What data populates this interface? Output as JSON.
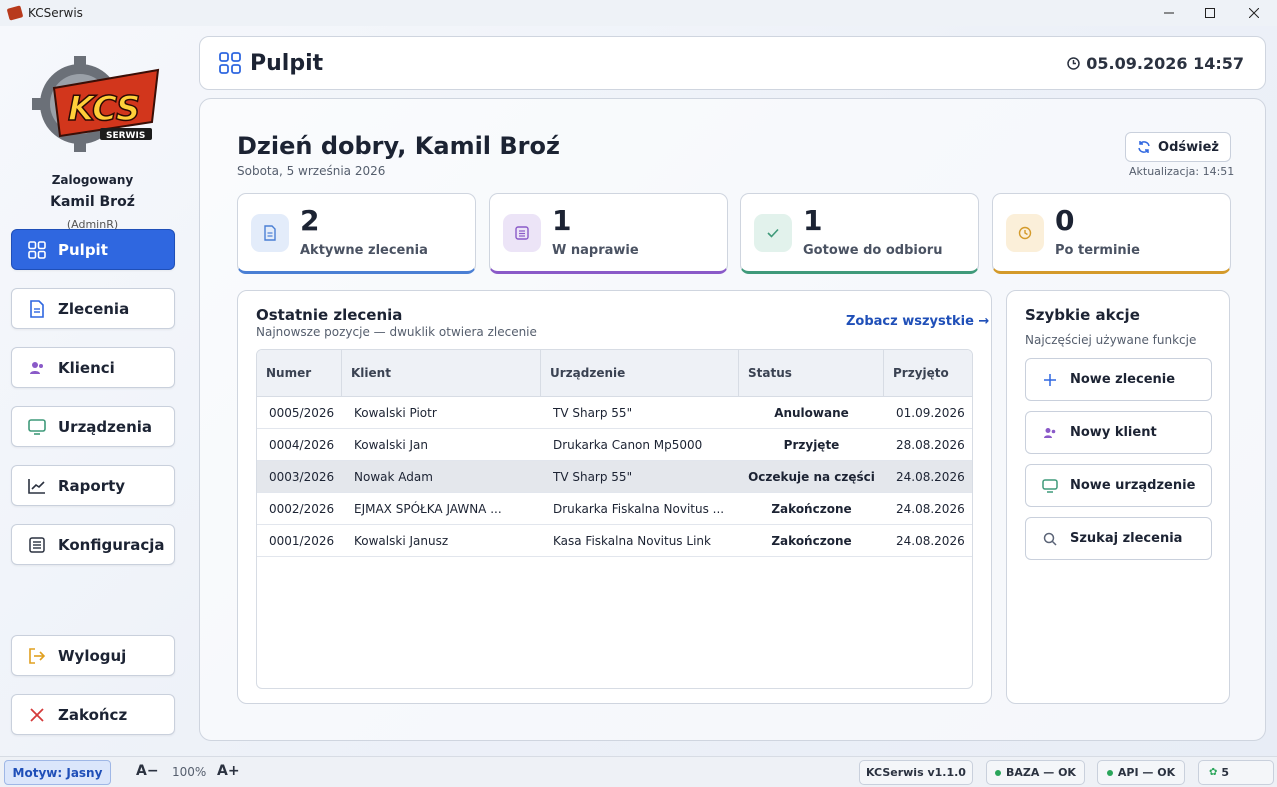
{
  "window": {
    "title": "KCSerwis"
  },
  "user": {
    "logged_label": "Zalogowany",
    "name": "Kamil Broź",
    "role": "(AdminR)"
  },
  "logo": {
    "text": "KCS",
    "subtext": "SERWIS"
  },
  "nav": {
    "items": [
      {
        "label": "Pulpit",
        "icon": "grid-icon",
        "active": true
      },
      {
        "label": "Zlecenia",
        "icon": "document-icon"
      },
      {
        "label": "Klienci",
        "icon": "users-icon"
      },
      {
        "label": "Urządzenia",
        "icon": "monitor-icon"
      },
      {
        "label": "Raporty",
        "icon": "chart-icon"
      },
      {
        "label": "Konfiguracja",
        "icon": "sliders-icon"
      }
    ],
    "logout": "Wyloguj",
    "exit": "Zakończ"
  },
  "header": {
    "title": "Pulpit",
    "datetime": "05.09.2026 14:57"
  },
  "dashboard": {
    "greeting": "Dzień dobry, Kamil Broź",
    "date": "Sobota, 5 września 2026",
    "refresh_label": "Odśwież",
    "updated": "Aktualizacja: 14:51"
  },
  "stats": [
    {
      "value": "2",
      "label": "Aktywne zlecenia",
      "color": "#4a7fd4",
      "bg": "#e3ecfa"
    },
    {
      "value": "1",
      "label": "W naprawie",
      "color": "#8a5ac8",
      "bg": "#ece4f7"
    },
    {
      "value": "1",
      "label": "Gotowe do odbioru",
      "color": "#3f9a7a",
      "bg": "#e2f2ec"
    },
    {
      "value": "0",
      "label": "Po terminie",
      "color": "#d49a2a",
      "bg": "#fbefd9"
    }
  ],
  "orders": {
    "title": "Ostatnie zlecenia",
    "subtitle": "Najnowsze pozycje — dwuklik otwiera zlecenie",
    "see_all": "Zobacz wszystkie  →",
    "columns": [
      "Numer",
      "Klient",
      "Urządzenie",
      "Status",
      "Przyjęto"
    ],
    "rows": [
      {
        "number": "0005/2026",
        "client": "Kowalski Piotr",
        "device": "TV Sharp 55\"",
        "status": "Anulowane",
        "date": "01.09.2026"
      },
      {
        "number": "0004/2026",
        "client": "Kowalski Jan",
        "device": "Drukarka Canon Mp5000",
        "status": "Przyjęte",
        "date": "28.08.2026"
      },
      {
        "number": "0003/2026",
        "client": "Nowak Adam",
        "device": "TV Sharp 55\"",
        "status": "Oczekuje na części",
        "date": "24.08.2026"
      },
      {
        "number": "0002/2026",
        "client": "EJMAX SPÓŁKA JAWNA ...",
        "device": "Drukarka Fiskalna Novitus ...",
        "status": "Zakończone",
        "date": "24.08.2026"
      },
      {
        "number": "0001/2026",
        "client": "Kowalski Janusz",
        "device": "Kasa Fiskalna Novitus Link",
        "status": "Zakończone",
        "date": "24.08.2026"
      }
    ]
  },
  "quick_actions": {
    "title": "Szybkie akcje",
    "subtitle": "Najczęściej używane funkcje",
    "items": [
      {
        "label": "Nowe zlecenie",
        "icon": "plus-icon"
      },
      {
        "label": "Nowy klient",
        "icon": "users-icon"
      },
      {
        "label": "Nowe urządzenie",
        "icon": "monitor-icon"
      },
      {
        "label": "Szukaj zlecenia",
        "icon": "search-icon"
      }
    ]
  },
  "statusbar": {
    "theme": "Motyw: Jasny",
    "font_minus": "A−",
    "zoom": "100%",
    "font_plus": "A+",
    "version": "KCSerwis v1.1.0",
    "db": "BAZA — OK",
    "api": "API — OK",
    "count": "5"
  }
}
